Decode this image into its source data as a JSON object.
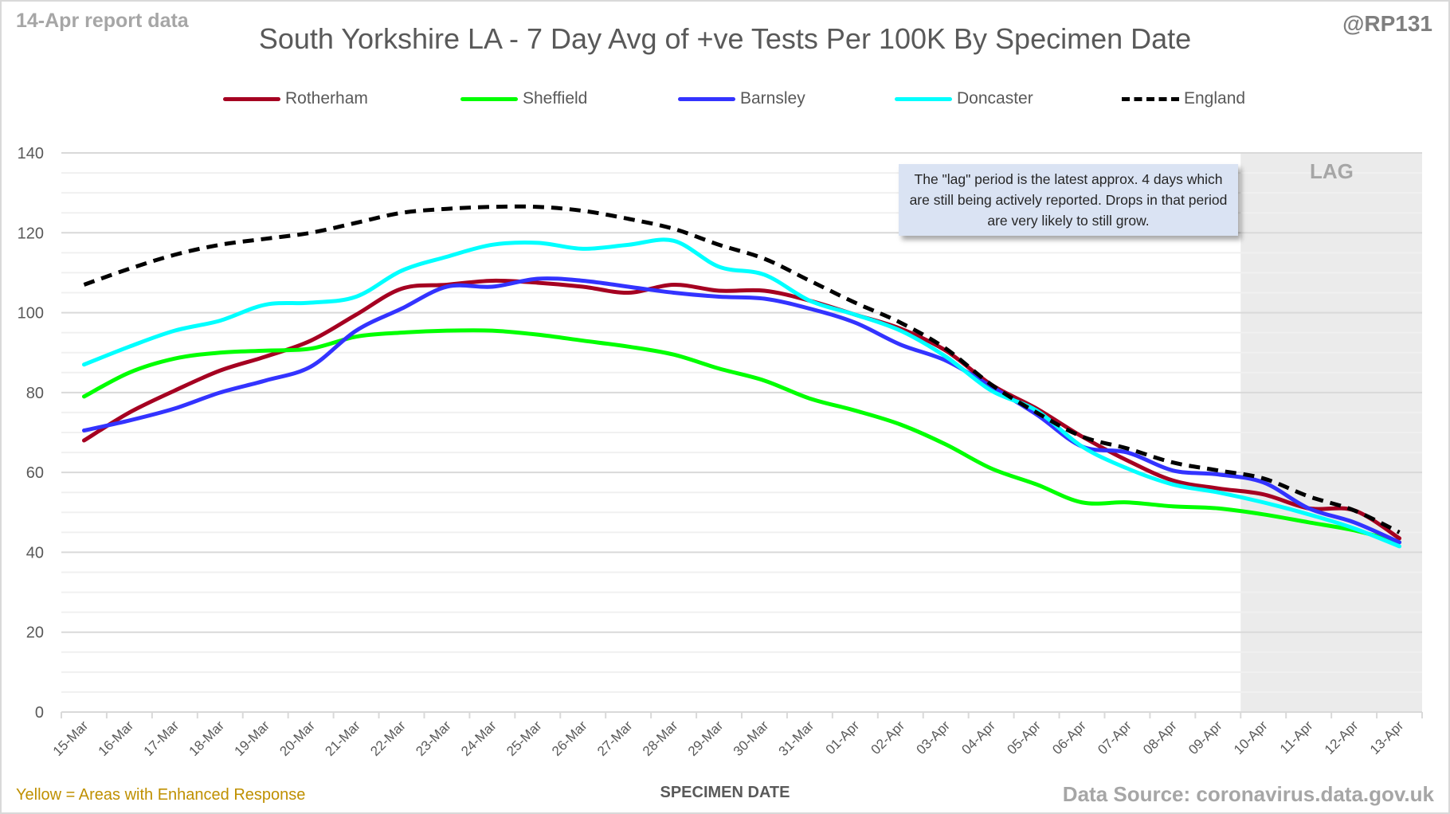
{
  "header": {
    "report_label": "14-Apr report data",
    "handle": "@RP131"
  },
  "annotation": {
    "text": "The \"lag\" period is the latest approx. 4 days which are still being actively reported. Drops in that period are very likely to still grow.",
    "lag_label": "LAG",
    "lag_start_category": "10-Apr",
    "lag_end_category": "13-Apr",
    "background_color": "#dae3f3",
    "lag_shade_color": "#ebebeb"
  },
  "footer": {
    "note": "Yellow = Areas with Enhanced Response",
    "source": "Data Source: coronavirus.data.gov.uk"
  },
  "chart_data": {
    "type": "line",
    "title": "South Yorkshire LA - 7 Day Avg of +ve Tests Per 100K By Specimen Date",
    "xlabel": "SPECIMEN DATE",
    "ylabel": "",
    "ylim": [
      0,
      140
    ],
    "yticks": [
      0,
      20,
      40,
      60,
      80,
      100,
      120,
      140
    ],
    "minor_grid_step": 5,
    "grid": true,
    "legend_position": "top",
    "categories": [
      "15-Mar",
      "16-Mar",
      "17-Mar",
      "18-Mar",
      "19-Mar",
      "20-Mar",
      "21-Mar",
      "22-Mar",
      "23-Mar",
      "24-Mar",
      "25-Mar",
      "26-Mar",
      "27-Mar",
      "28-Mar",
      "29-Mar",
      "30-Mar",
      "31-Mar",
      "01-Apr",
      "02-Apr",
      "03-Apr",
      "04-Apr",
      "05-Apr",
      "06-Apr",
      "07-Apr",
      "08-Apr",
      "09-Apr",
      "10-Apr",
      "11-Apr",
      "12-Apr",
      "13-Apr"
    ],
    "series": [
      {
        "name": "Rotherham",
        "color": "#a50021",
        "dashed": false,
        "values": [
          68,
          75,
          80.5,
          85.5,
          89,
          93,
          99.5,
          106,
          107,
          108,
          107.5,
          106.5,
          105,
          107,
          105.5,
          105.5,
          103,
          99.5,
          96,
          90.5,
          82,
          76,
          69,
          63,
          58,
          56,
          54.5,
          51,
          50.5,
          43.5
        ]
      },
      {
        "name": "Sheffield",
        "color": "#00ff00",
        "dashed": false,
        "values": [
          79,
          85,
          88.5,
          90,
          90.5,
          91,
          94,
          95,
          95.5,
          95.5,
          94.5,
          93,
          91.5,
          89.5,
          86,
          83,
          78.5,
          75.5,
          72,
          67,
          61,
          57,
          52.5,
          52.5,
          51.5,
          51,
          49.5,
          47.5,
          45.5,
          42.5
        ]
      },
      {
        "name": "Barnsley",
        "color": "#3333ff",
        "dashed": false,
        "values": [
          70.5,
          73,
          76,
          80,
          83,
          86.5,
          95.5,
          101,
          106.5,
          106.5,
          108.5,
          108,
          106.5,
          105,
          104,
          103.5,
          101,
          97.5,
          92,
          88,
          81.5,
          74.5,
          66.5,
          65,
          60.5,
          59.5,
          57.5,
          51,
          47.5,
          42.5
        ]
      },
      {
        "name": "Doncaster",
        "color": "#00ffff",
        "dashed": false,
        "values": [
          87,
          91.5,
          95.5,
          98,
          102,
          102.5,
          104,
          110.5,
          114,
          117,
          117.5,
          116,
          117,
          118,
          111.5,
          109.5,
          103,
          99.5,
          95.5,
          89,
          80.5,
          75.5,
          66.5,
          61,
          57,
          55,
          52.5,
          49.5,
          46,
          41.5
        ]
      },
      {
        "name": "England",
        "color": "#000000",
        "dashed": true,
        "values": [
          107,
          111,
          114.5,
          117,
          118.5,
          120,
          122.5,
          125,
          126,
          126.5,
          126.5,
          125.5,
          123.5,
          121,
          117,
          113.5,
          108,
          102.5,
          97.5,
          91,
          82,
          75,
          69,
          66,
          62.5,
          60.5,
          58.5,
          54,
          50.5,
          45
        ]
      }
    ]
  }
}
